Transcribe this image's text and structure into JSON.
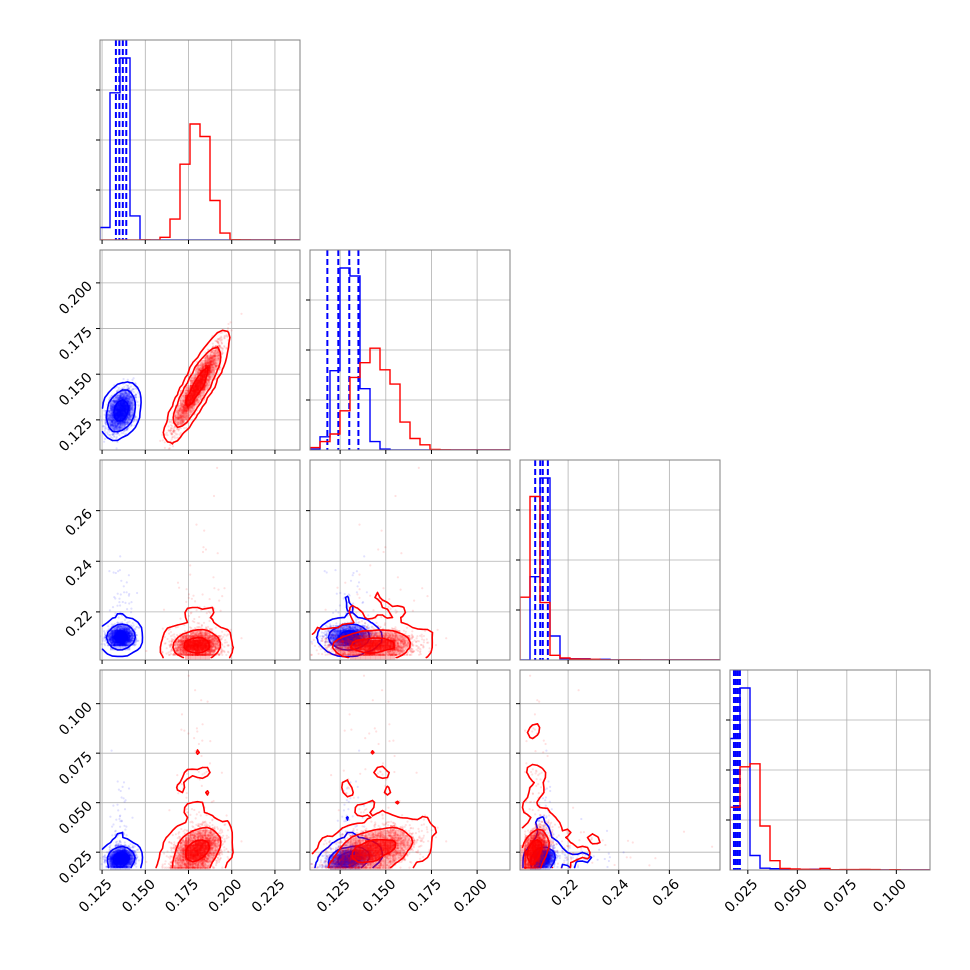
{
  "chart_data": {
    "type": "corner",
    "title": "",
    "parameters": [
      "",
      "",
      "",
      ""
    ],
    "series": [
      {
        "name": "",
        "color": "#0000ff",
        "mean": [
          0.136,
          0.13,
          0.21,
          0.0215
        ],
        "std": [
          0.0035,
          0.0055,
          0.002,
          0.0025
        ],
        "quantiles": [
          [
            0.133,
            0.135,
            0.137,
            0.139
          ],
          [
            0.118,
            0.124,
            0.13,
            0.135
          ],
          [
            0.207,
            0.209,
            0.21,
            0.212
          ],
          [
            0.018,
            0.019,
            0.02,
            0.021
          ]
        ],
        "corr": {
          "0-1": 0.35,
          "0-2": 0.1,
          "0-3": 0.15,
          "1-2": 0.05,
          "1-3": 0.35,
          "2-3": 0.3
        }
      },
      {
        "name": "",
        "color": "#ff0000",
        "mean": [
          0.18,
          0.143,
          0.207,
          0.026
        ],
        "std": [
          0.0065,
          0.011,
          0.0025,
          0.0055
        ],
        "corr": {
          "0-1": 0.93,
          "0-2": 0.05,
          "0-3": 0.35,
          "1-2": 0.1,
          "1-3": 0.45,
          "2-3": 0.45
        }
      }
    ],
    "axes": [
      {
        "range": [
          0.1238,
          0.2395
        ],
        "ticks": [
          "0.125",
          "0.150",
          "0.175",
          "0.200",
          "0.225"
        ]
      },
      {
        "range": [
          0.1085,
          0.218
        ],
        "ticks": [
          "0.125",
          "0.150",
          "0.175",
          "0.200"
        ]
      },
      {
        "range": [
          0.201,
          0.28
        ],
        "ticks": [
          "0.22",
          "0.24",
          "0.26"
        ]
      },
      {
        "range": [
          0.016,
          0.117
        ],
        "ticks": [
          "0.025",
          "0.050",
          "0.075",
          "0.100"
        ]
      }
    ],
    "grid": true,
    "legend": "none"
  }
}
